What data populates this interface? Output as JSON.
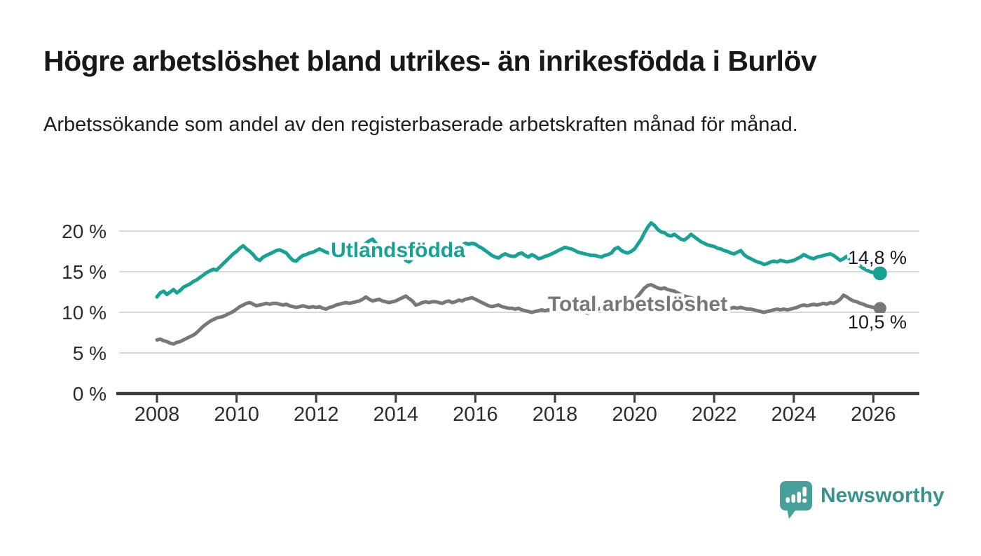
{
  "chart_data": {
    "type": "line",
    "title": "Högre arbetslöshet bland utrikes- än inrikesfödda i Burlöv",
    "subtitle": "Arbetssökande som andel av den registerbaserade arbetskraften månad för månad.",
    "unit": "%",
    "grid": "horizontal",
    "legend_position": "inline-labels",
    "start_year": 2008,
    "points_per_year": 12,
    "x_axis": {
      "tick_years": [
        2008,
        2010,
        2012,
        2014,
        2016,
        2018,
        2020,
        2022,
        2024,
        2026
      ],
      "tick_labels": [
        "2008",
        "2010",
        "2012",
        "2014",
        "2016",
        "2018",
        "2020",
        "2022",
        "2024",
        "2026"
      ]
    },
    "y_axis": {
      "tick_values": [
        0,
        5,
        10,
        15,
        20
      ],
      "tick_labels": [
        "0 %",
        "5 %",
        "10 %",
        "15 %",
        "20 %"
      ],
      "range": [
        0,
        21.5
      ]
    },
    "series": [
      {
        "name": "Utlandsfödda",
        "color": "#16a295",
        "end_label": "14,8 %",
        "final_value": 14.8,
        "values": [
          11.9,
          12.4,
          12.6,
          12.2,
          12.5,
          12.8,
          12.4,
          12.7,
          13.1,
          13.3,
          13.5,
          13.8,
          14.0,
          14.3,
          14.6,
          14.9,
          15.1,
          15.3,
          15.2,
          15.6,
          16.0,
          16.4,
          16.8,
          17.2,
          17.5,
          17.9,
          18.2,
          17.8,
          17.5,
          17.1,
          16.6,
          16.4,
          16.8,
          17.0,
          17.2,
          17.4,
          17.6,
          17.7,
          17.5,
          17.3,
          16.8,
          16.4,
          16.3,
          16.7,
          17.0,
          17.1,
          17.3,
          17.4,
          17.6,
          17.8,
          17.6,
          17.4,
          17.3,
          17.5,
          17.6,
          17.4,
          17.2,
          17.4,
          17.5,
          17.4,
          17.6,
          17.9,
          18.2,
          18.5,
          18.8,
          19.0,
          18.5,
          18.1,
          17.8,
          17.9,
          17.8,
          17.9,
          17.8,
          17.4,
          16.9,
          16.4,
          16.2,
          16.6,
          17.0,
          17.3,
          17.5,
          17.6,
          17.5,
          17.7,
          17.7,
          17.8,
          17.9,
          17.8,
          18.0,
          18.1,
          18.0,
          18.2,
          18.3,
          18.5,
          18.4,
          18.5,
          18.4,
          18.1,
          17.9,
          17.6,
          17.3,
          17.0,
          16.8,
          16.7,
          17.0,
          17.2,
          17.0,
          16.9,
          16.9,
          17.2,
          17.3,
          17.0,
          16.8,
          17.1,
          16.9,
          16.6,
          16.7,
          16.9,
          17.0,
          17.2,
          17.4,
          17.6,
          17.8,
          18.0,
          17.9,
          17.8,
          17.6,
          17.4,
          17.3,
          17.2,
          17.1,
          17.0,
          17.0,
          16.9,
          16.8,
          17.0,
          17.1,
          17.3,
          17.8,
          18.0,
          17.6,
          17.4,
          17.3,
          17.5,
          17.8,
          18.4,
          19.0,
          19.8,
          20.5,
          21.0,
          20.7,
          20.2,
          19.9,
          19.8,
          19.5,
          19.4,
          19.6,
          19.3,
          19.0,
          18.9,
          19.2,
          19.6,
          19.3,
          19.0,
          18.7,
          18.5,
          18.3,
          18.2,
          18.1,
          17.9,
          17.8,
          17.6,
          17.5,
          17.3,
          17.2,
          17.4,
          17.6,
          17.1,
          16.8,
          16.6,
          16.4,
          16.2,
          16.1,
          15.9,
          16.0,
          16.2,
          16.3,
          16.2,
          16.4,
          16.3,
          16.2,
          16.3,
          16.4,
          16.6,
          16.8,
          17.1,
          16.9,
          16.7,
          16.6,
          16.8,
          16.9,
          17.0,
          17.1,
          17.2,
          17.0,
          16.7,
          16.4,
          16.6,
          16.9,
          16.4,
          16.2,
          16.0,
          15.7,
          15.4,
          15.2,
          15.0,
          14.9,
          14.8,
          14.8
        ]
      },
      {
        "name": "Total arbetslöshet",
        "color": "#787879",
        "end_label": "10,5 %",
        "final_value": 10.5,
        "values": [
          6.6,
          6.7,
          6.5,
          6.4,
          6.2,
          6.1,
          6.3,
          6.4,
          6.6,
          6.8,
          7.0,
          7.2,
          7.5,
          7.9,
          8.3,
          8.6,
          8.9,
          9.1,
          9.3,
          9.4,
          9.5,
          9.7,
          9.9,
          10.1,
          10.4,
          10.7,
          10.9,
          11.1,
          11.2,
          11.0,
          10.8,
          10.9,
          11.0,
          11.1,
          11.0,
          11.1,
          11.1,
          11.0,
          10.9,
          11.0,
          10.8,
          10.7,
          10.6,
          10.7,
          10.8,
          10.7,
          10.6,
          10.7,
          10.6,
          10.7,
          10.5,
          10.4,
          10.6,
          10.7,
          10.9,
          11.0,
          11.1,
          11.2,
          11.1,
          11.2,
          11.3,
          11.4,
          11.6,
          11.9,
          11.6,
          11.4,
          11.5,
          11.6,
          11.4,
          11.3,
          11.2,
          11.3,
          11.4,
          11.6,
          11.8,
          12.0,
          11.7,
          11.4,
          10.9,
          11.0,
          11.2,
          11.3,
          11.2,
          11.3,
          11.3,
          11.2,
          11.1,
          11.3,
          11.4,
          11.2,
          11.3,
          11.5,
          11.4,
          11.6,
          11.7,
          11.8,
          11.6,
          11.4,
          11.2,
          11.0,
          10.8,
          10.7,
          10.8,
          10.9,
          10.7,
          10.6,
          10.5,
          10.5,
          10.4,
          10.5,
          10.3,
          10.2,
          10.1,
          10.0,
          10.1,
          10.2,
          10.3,
          10.2,
          10.3,
          10.2,
          10.3,
          10.4,
          10.3,
          10.4,
          10.5,
          10.4,
          10.3,
          10.2,
          10.1,
          10.0,
          9.9,
          10.1,
          10.2,
          10.4,
          10.5,
          10.4,
          10.5,
          10.6,
          10.7,
          10.8,
          10.9,
          11.0,
          11.1,
          11.2,
          11.5,
          12.0,
          12.5,
          13.0,
          13.3,
          13.4,
          13.2,
          13.0,
          12.9,
          13.0,
          12.8,
          12.7,
          12.6,
          12.4,
          12.2,
          12.0,
          11.9,
          11.8,
          11.6,
          11.5,
          11.4,
          11.3,
          11.2,
          11.1,
          11.0,
          10.9,
          10.8,
          10.7,
          10.6,
          10.5,
          10.6,
          10.5,
          10.6,
          10.5,
          10.4,
          10.4,
          10.3,
          10.2,
          10.1,
          10.0,
          10.1,
          10.2,
          10.3,
          10.4,
          10.3,
          10.4,
          10.3,
          10.4,
          10.5,
          10.6,
          10.8,
          10.9,
          10.8,
          10.9,
          11.0,
          10.9,
          11.0,
          11.1,
          11.0,
          11.2,
          11.1,
          11.3,
          11.6,
          12.1,
          11.9,
          11.6,
          11.4,
          11.3,
          11.1,
          11.0,
          10.8,
          10.7,
          10.6,
          10.5,
          10.5
        ]
      }
    ]
  },
  "colors": {
    "accent_teal": "#16a295",
    "series_gray": "#787879",
    "grid": "#d9d9d9",
    "axis": "#3b3b3b",
    "tick_text": "#2d2d2d",
    "end_label_text": "#1b1b1b",
    "logo_teal": "#48a09b",
    "brand_text": "#38938e"
  },
  "footer": {
    "brand": "Newsworthy"
  }
}
